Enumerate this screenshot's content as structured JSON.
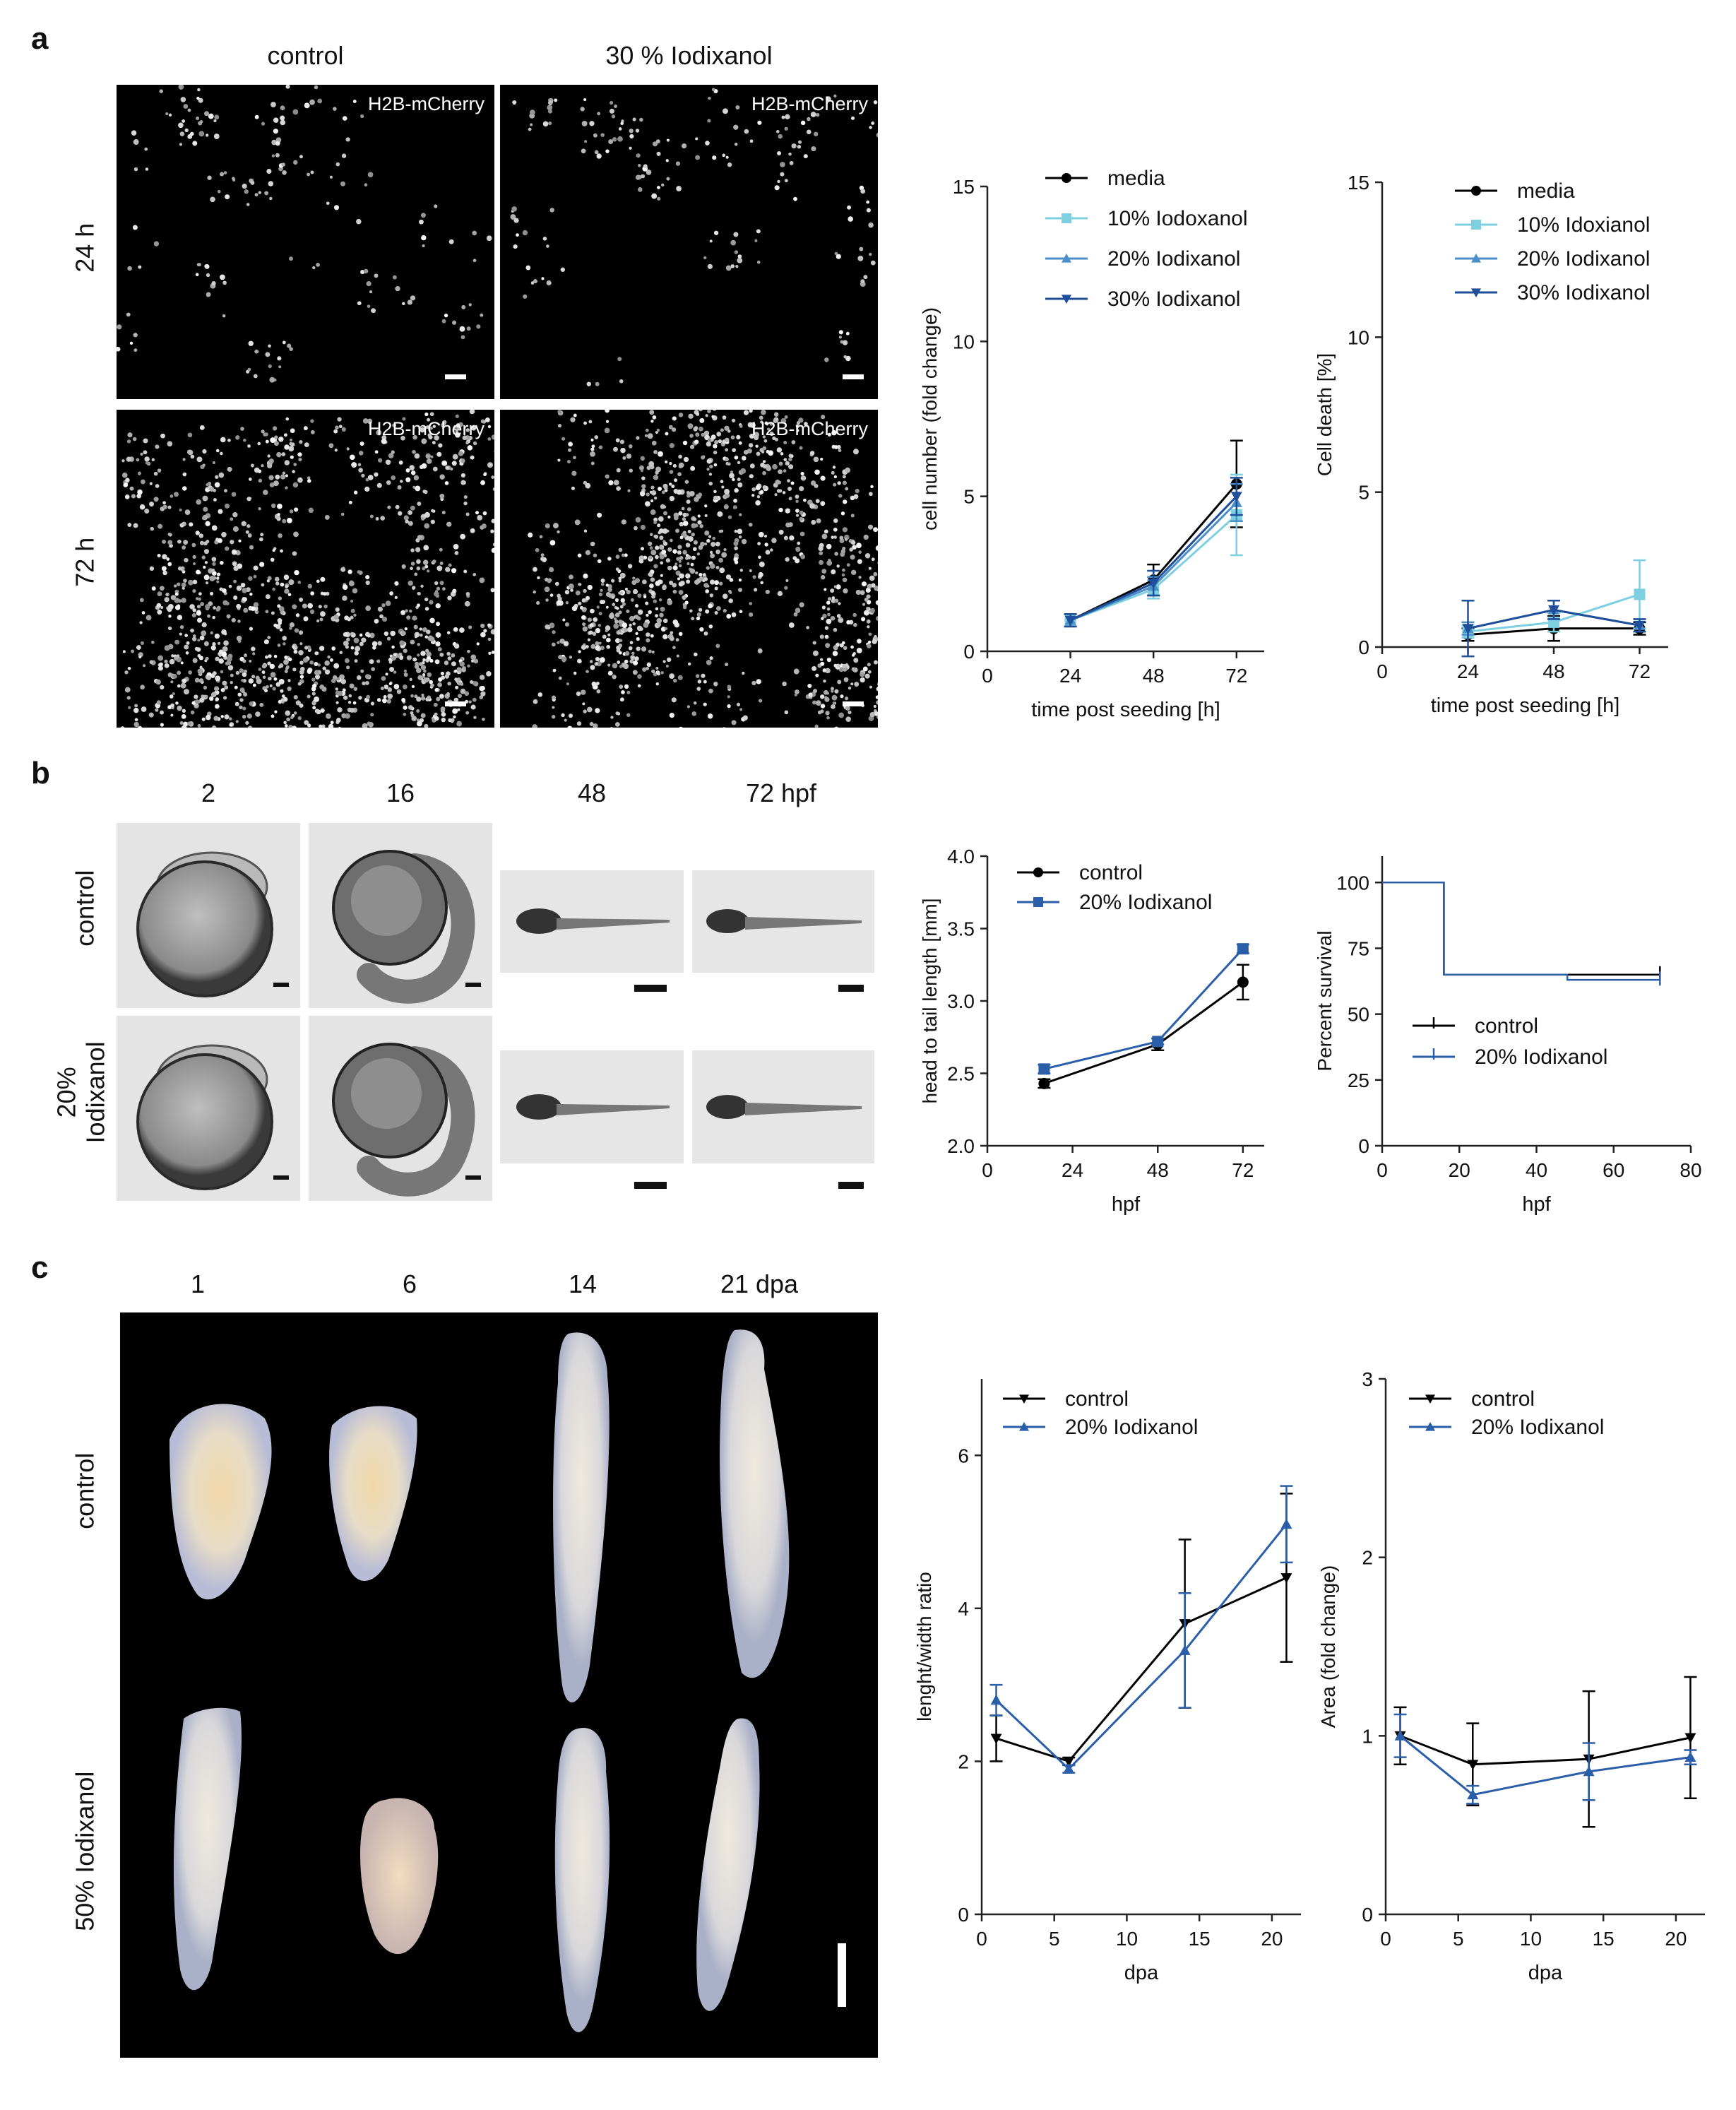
{
  "panel_a": {
    "label": "a",
    "col_titles": [
      "control",
      "30 % Iodixanol"
    ],
    "row_titles": [
      "24 h",
      "72 h"
    ],
    "image_tag": "H2B-mCherry"
  },
  "panel_b": {
    "label": "b",
    "col_titles": [
      "2",
      "16",
      "48",
      "72 hpf"
    ],
    "row_titles": [
      "control",
      "20%\nIodixanol"
    ]
  },
  "panel_c": {
    "label": "c",
    "col_titles": [
      "1",
      "6",
      "14",
      "21 dpa"
    ],
    "row_titles": [
      "control",
      "50% Iodixanol"
    ]
  },
  "chart_data": [
    {
      "id": "a_cell_number",
      "type": "line",
      "xlabel": "time post seeding [h]",
      "ylabel": "cell number (fold change)",
      "x": [
        24,
        48,
        72
      ],
      "xlim": [
        0,
        80
      ],
      "xticks": [
        0,
        24,
        48,
        72
      ],
      "ylim": [
        0,
        15
      ],
      "yticks": [
        0,
        5,
        10,
        15
      ],
      "series": [
        {
          "name": "media",
          "color": "#000000",
          "marker": "circle",
          "values": [
            1.0,
            2.3,
            5.4
          ],
          "err": [
            0.2,
            0.5,
            1.4
          ]
        },
        {
          "name": "10% Iodoxanol",
          "color": "#7ecfe0",
          "marker": "square",
          "values": [
            1.0,
            2.0,
            4.4
          ],
          "err": [
            0.2,
            0.3,
            1.3
          ]
        },
        {
          "name": "20% Iodixanol",
          "color": "#4a8fc9",
          "marker": "triangle-up",
          "values": [
            1.0,
            2.1,
            4.8
          ],
          "err": [
            0.2,
            0.3,
            0.6
          ]
        },
        {
          "name": "30% Iodixanol",
          "color": "#1f4e9a",
          "marker": "triangle-down",
          "values": [
            1.0,
            2.2,
            5.0
          ],
          "err": [
            0.2,
            0.4,
            0.6
          ]
        }
      ]
    },
    {
      "id": "a_cell_death",
      "type": "line",
      "xlabel": "time post seeding [h]",
      "ylabel": "Cell death [%]",
      "x": [
        24,
        48,
        72
      ],
      "xlim": [
        0,
        80
      ],
      "xticks": [
        0,
        24,
        48,
        72
      ],
      "ylim": [
        0,
        15
      ],
      "yticks": [
        0,
        5,
        10,
        15
      ],
      "series": [
        {
          "name": "media",
          "color": "#000000",
          "marker": "circle",
          "values": [
            0.4,
            0.6,
            0.6
          ],
          "err": [
            0.2,
            0.4,
            0.2
          ]
        },
        {
          "name": "10% Idoxianol",
          "color": "#7ecfe0",
          "marker": "square",
          "values": [
            0.5,
            0.8,
            1.7
          ],
          "err": [
            0.2,
            0.3,
            1.1
          ]
        },
        {
          "name": "20% Iodixanol",
          "color": "#4a8fc9",
          "marker": "triangle-up",
          "values": [
            0.6,
            1.2,
            0.7
          ],
          "err": [
            0.2,
            0.3,
            0.2
          ]
        },
        {
          "name": "30% Iodixanol",
          "color": "#1f4e9a",
          "marker": "triangle-down",
          "values": [
            0.6,
            1.2,
            0.7
          ],
          "err": [
            0.9,
            0.3,
            0.2
          ]
        }
      ]
    },
    {
      "id": "b_length",
      "type": "line",
      "xlabel": "hpf",
      "ylabel": "head to tail length [mm]",
      "x": [
        16,
        48,
        72
      ],
      "xlim": [
        0,
        78
      ],
      "xticks": [
        0,
        24,
        48,
        72
      ],
      "ylim": [
        2.0,
        4.0
      ],
      "yticks": [
        2.0,
        2.5,
        3.0,
        3.5,
        4.0
      ],
      "series": [
        {
          "name": "control",
          "color": "#000000",
          "marker": "circle",
          "values": [
            2.43,
            2.7,
            3.13
          ],
          "err": [
            0.03,
            0.04,
            0.12
          ]
        },
        {
          "name": "20% Iodixanol",
          "color": "#2b5ea8",
          "marker": "square",
          "values": [
            2.53,
            2.72,
            3.36
          ],
          "err": [
            0.03,
            0.02,
            0.03
          ]
        }
      ]
    },
    {
      "id": "b_survival",
      "type": "line",
      "xlabel": "hpf",
      "ylabel": "Percent survival",
      "xlim": [
        0,
        80
      ],
      "xticks": [
        0,
        20,
        40,
        60,
        80
      ],
      "ylim": [
        0,
        110
      ],
      "yticks": [
        0,
        25,
        50,
        75,
        100
      ],
      "series": [
        {
          "name": "control",
          "color": "#000000",
          "step_x": [
            0,
            16,
            16,
            72
          ],
          "step_y": [
            100,
            100,
            65,
            65
          ],
          "censor_x": 72
        },
        {
          "name": "20% Iodixanol",
          "color": "#2b5ea8",
          "step_x": [
            0,
            16,
            16,
            48,
            48,
            72
          ],
          "step_y": [
            100,
            100,
            65,
            65,
            63,
            63
          ],
          "censor_x": 72
        }
      ]
    },
    {
      "id": "c_ratio",
      "type": "line",
      "xlabel": "dpa",
      "ylabel": "lenght/width ratio",
      "x": [
        1,
        6,
        14,
        21
      ],
      "xlim": [
        0,
        22
      ],
      "xticks": [
        0,
        5,
        10,
        15,
        20
      ],
      "ylim": [
        0,
        7
      ],
      "yticks": [
        0,
        2,
        4,
        6
      ],
      "series": [
        {
          "name": "control",
          "color": "#000000",
          "marker": "triangle-down",
          "values": [
            2.3,
            2.0,
            3.8,
            4.4
          ],
          "err": [
            0.3,
            0.05,
            1.1,
            1.1
          ]
        },
        {
          "name": "20% Iodixanol",
          "color": "#2b5ea8",
          "marker": "triangle-up",
          "values": [
            2.8,
            1.9,
            3.45,
            5.1
          ],
          "err": [
            0.2,
            0.05,
            0.75,
            0.5
          ]
        }
      ]
    },
    {
      "id": "c_area",
      "type": "line",
      "xlabel": "dpa",
      "ylabel": "Area (fold change)",
      "x": [
        1,
        6,
        14,
        21
      ],
      "xlim": [
        0,
        22
      ],
      "xticks": [
        0,
        5,
        10,
        15,
        20
      ],
      "ylim": [
        0,
        3
      ],
      "yticks": [
        0,
        1,
        2,
        3
      ],
      "series": [
        {
          "name": "control",
          "color": "#000000",
          "marker": "triangle-down",
          "values": [
            1.0,
            0.84,
            0.87,
            0.99
          ],
          "err": [
            0.16,
            0.23,
            0.38,
            0.34
          ]
        },
        {
          "name": "20% Iodixanol",
          "color": "#2b5ea8",
          "marker": "triangle-up",
          "values": [
            1.0,
            0.67,
            0.8,
            0.88
          ],
          "err": [
            0.12,
            0.05,
            0.16,
            0.04
          ]
        }
      ]
    }
  ]
}
